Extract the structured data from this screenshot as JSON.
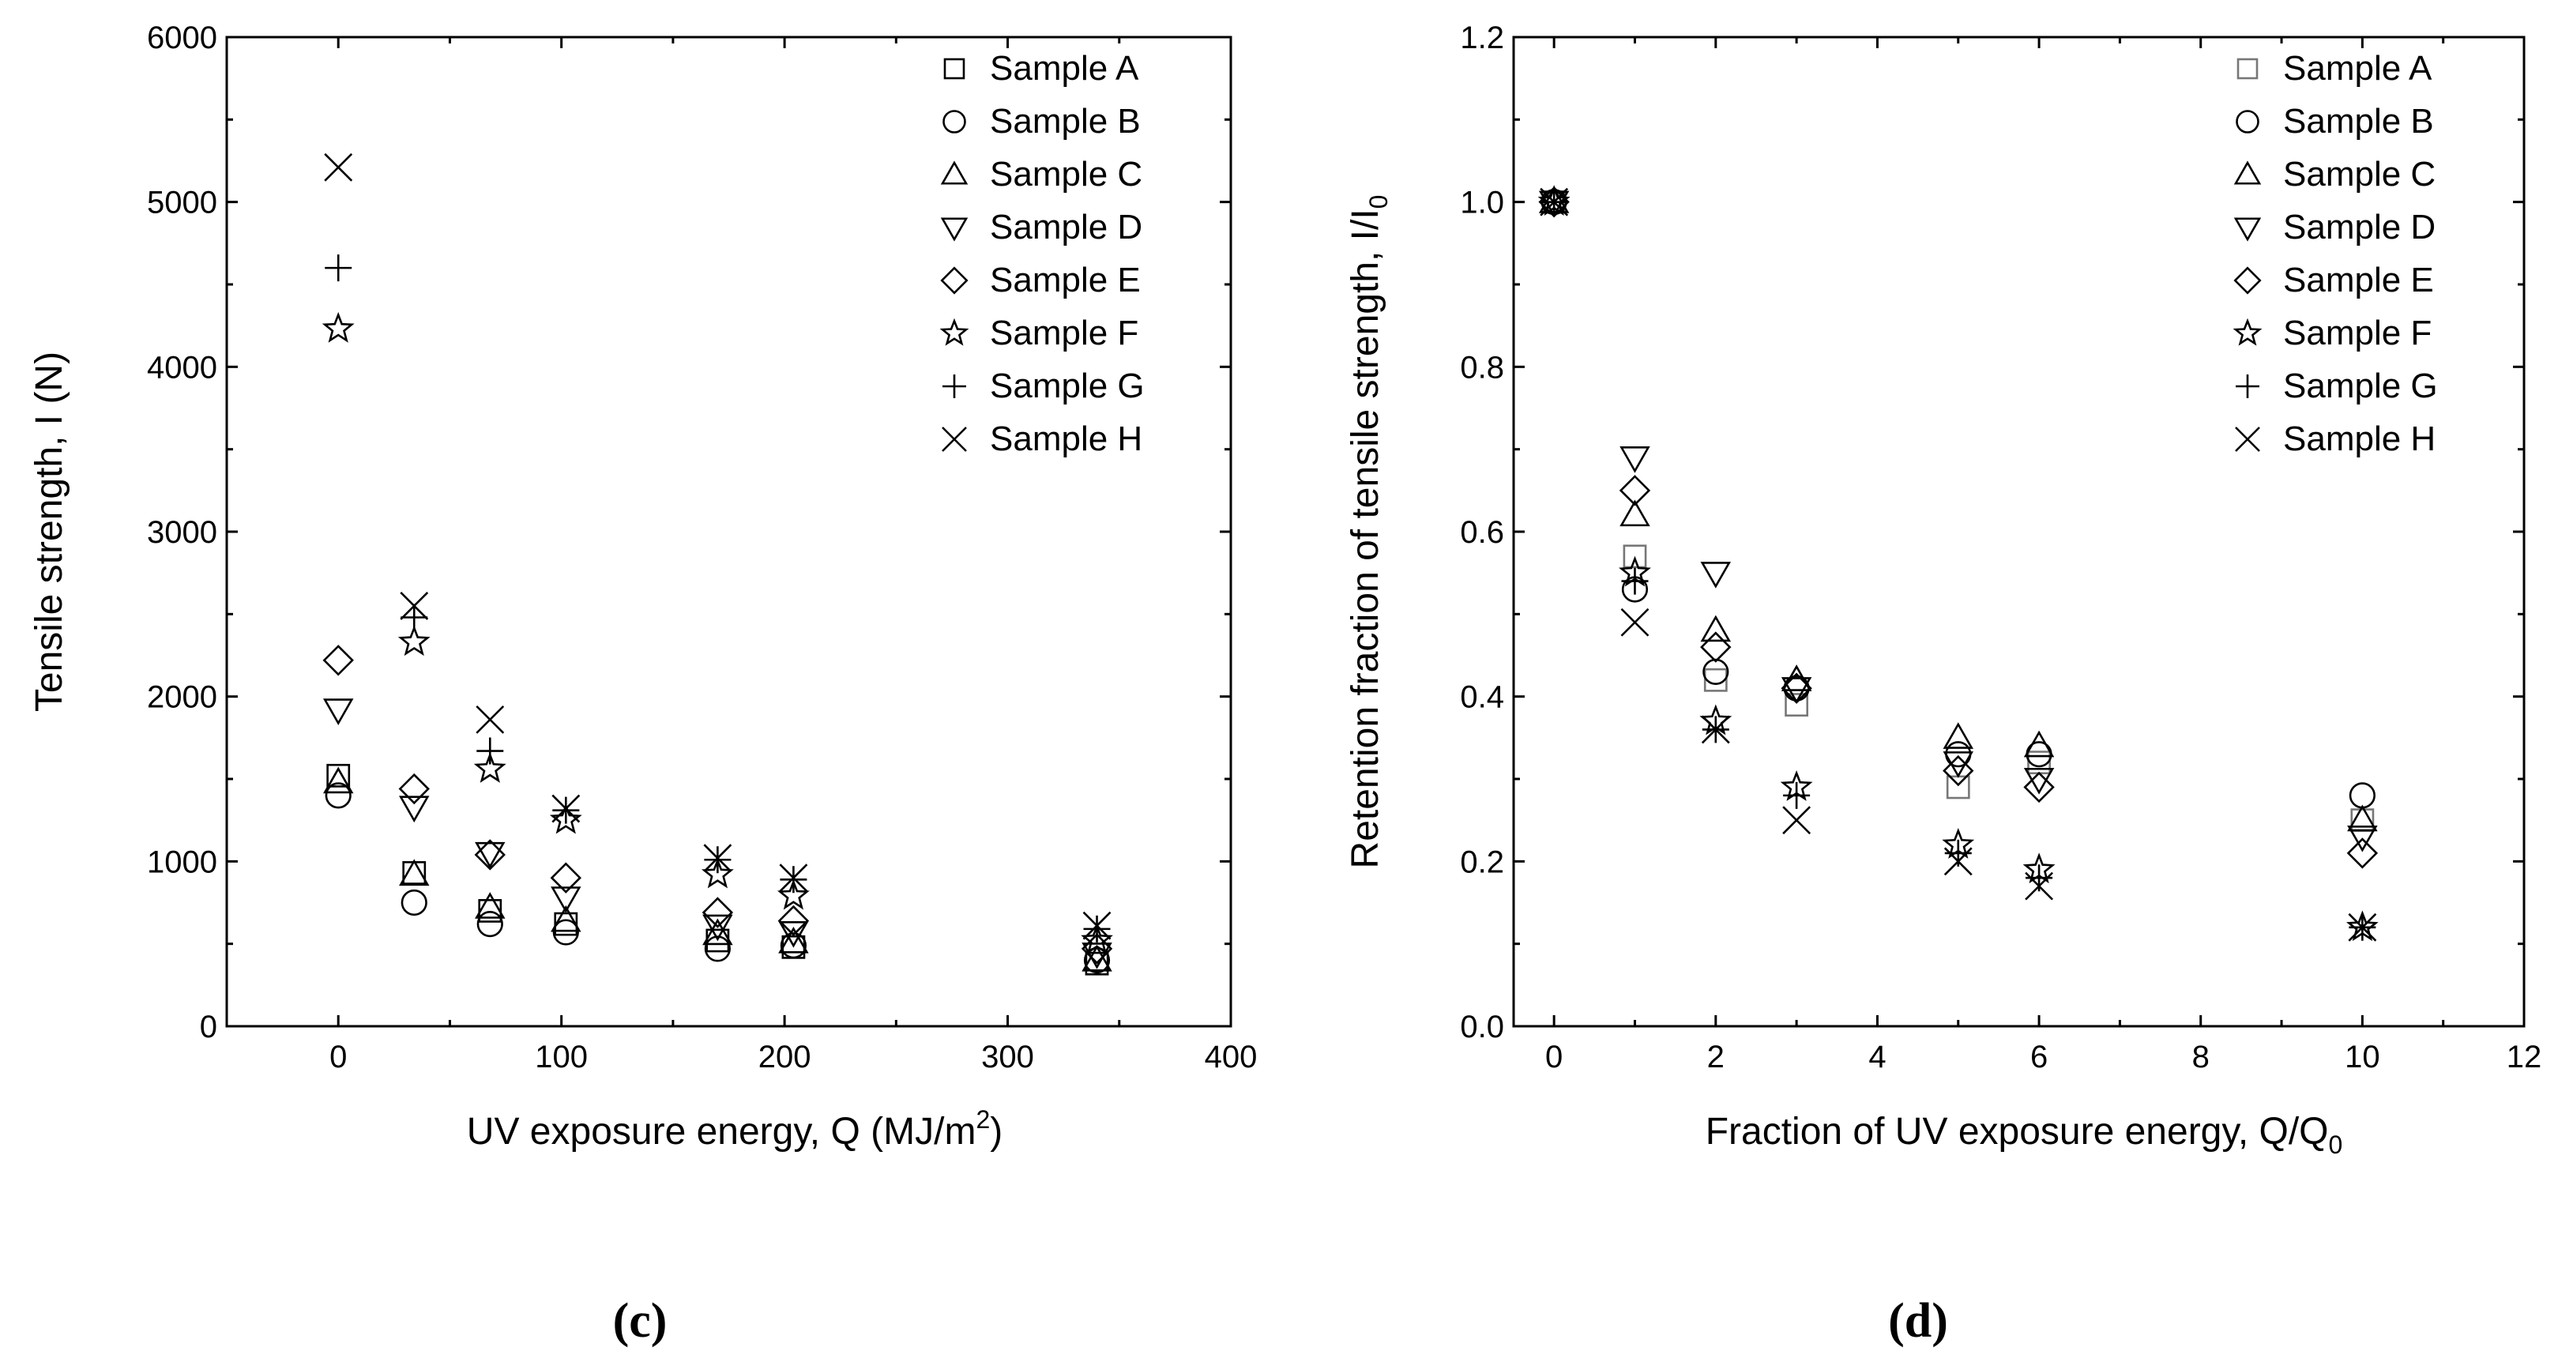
{
  "chart_data": [
    {
      "type": "scatter",
      "panel_label": "(c)",
      "xlabel": "UV exposure energy, Q (MJ/m",
      "xlabel_sup": "2",
      "xlabel_tail": ")",
      "ylabel": "Tensile strength, I (N)",
      "xlim": [
        -50,
        400
      ],
      "ylim": [
        0,
        6000
      ],
      "xticks": [
        0,
        100,
        200,
        300,
        400
      ],
      "yticks": [
        0,
        1000,
        2000,
        3000,
        4000,
        5000,
        6000
      ],
      "legend_position": "top-right",
      "series": [
        {
          "name": "Sample A",
          "marker": "square",
          "x": [
            0,
            34,
            68,
            102,
            170,
            204,
            340
          ],
          "y": [
            1520,
            930,
            700,
            620,
            520,
            480,
            380
          ]
        },
        {
          "name": "Sample B",
          "marker": "circle",
          "x": [
            0,
            34,
            68,
            102,
            170,
            204,
            340
          ],
          "y": [
            1400,
            750,
            620,
            570,
            470,
            490,
            400
          ]
        },
        {
          "name": "Sample C",
          "marker": "triangle-up",
          "x": [
            0,
            34,
            68,
            102,
            170,
            204,
            340
          ],
          "y": [
            1480,
            920,
            720,
            640,
            560,
            510,
            400
          ]
        },
        {
          "name": "Sample D",
          "marker": "triangle-down",
          "x": [
            0,
            34,
            68,
            102,
            170,
            204,
            340
          ],
          "y": [
            1920,
            1330,
            1050,
            780,
            610,
            570,
            440
          ]
        },
        {
          "name": "Sample E",
          "marker": "diamond",
          "x": [
            0,
            34,
            68,
            102,
            170,
            204,
            340
          ],
          "y": [
            2220,
            1440,
            1040,
            900,
            690,
            640,
            470
          ]
        },
        {
          "name": "Sample F",
          "marker": "star",
          "x": [
            0,
            34,
            68,
            102,
            170,
            204,
            340
          ],
          "y": [
            4230,
            2330,
            1560,
            1250,
            920,
            790,
            520
          ]
        },
        {
          "name": "Sample G",
          "marker": "plus",
          "x": [
            0,
            34,
            68,
            102,
            170,
            204,
            340
          ],
          "y": [
            4600,
            2480,
            1670,
            1310,
            1010,
            890,
            590
          ]
        },
        {
          "name": "Sample H",
          "marker": "x",
          "x": [
            0,
            34,
            68,
            102,
            170,
            204,
            340
          ],
          "y": [
            5210,
            2550,
            1860,
            1320,
            1020,
            900,
            610
          ]
        }
      ]
    },
    {
      "type": "scatter",
      "panel_label": "(d)",
      "xlabel": "Fraction of UV exposure energy, Q/Q",
      "xlabel_sub": "0",
      "ylabel": "Retention fraction of tensile strength, I/I",
      "ylabel_sub": "0",
      "xlim": [
        -0.5,
        12
      ],
      "ylim": [
        0.0,
        1.2
      ],
      "xticks": [
        0,
        2,
        4,
        6,
        8,
        10,
        12
      ],
      "yticks": [
        0.0,
        0.2,
        0.4,
        0.6,
        0.8,
        1.0,
        1.2
      ],
      "ytick_labels": [
        "0.0",
        "0.2",
        "0.4",
        "0.6",
        "0.8",
        "1.0",
        "1.2"
      ],
      "legend_position": "top-right",
      "series": [
        {
          "name": "Sample A",
          "marker": "square",
          "gray": true,
          "x": [
            0,
            1,
            2,
            3,
            5,
            6,
            10
          ],
          "y": [
            1.0,
            0.57,
            0.42,
            0.39,
            0.29,
            0.32,
            0.25
          ]
        },
        {
          "name": "Sample B",
          "marker": "circle",
          "x": [
            0,
            1,
            2,
            3,
            5,
            6,
            10
          ],
          "y": [
            1.0,
            0.53,
            0.43,
            0.41,
            0.33,
            0.33,
            0.28
          ]
        },
        {
          "name": "Sample C",
          "marker": "triangle-up",
          "x": [
            0,
            1,
            2,
            3,
            5,
            6,
            10
          ],
          "y": [
            1.0,
            0.62,
            0.48,
            0.42,
            0.35,
            0.34,
            0.25
          ]
        },
        {
          "name": "Sample D",
          "marker": "triangle-down",
          "x": [
            0,
            1,
            2,
            3,
            5,
            6,
            10
          ],
          "y": [
            1.0,
            0.69,
            0.55,
            0.41,
            0.32,
            0.3,
            0.23
          ]
        },
        {
          "name": "Sample E",
          "marker": "diamond",
          "x": [
            0,
            1,
            2,
            3,
            5,
            6,
            10
          ],
          "y": [
            1.0,
            0.65,
            0.46,
            0.41,
            0.31,
            0.29,
            0.21
          ]
        },
        {
          "name": "Sample F",
          "marker": "star",
          "x": [
            0,
            1,
            2,
            3,
            5,
            6,
            10
          ],
          "y": [
            1.0,
            0.55,
            0.37,
            0.29,
            0.22,
            0.19,
            0.12
          ]
        },
        {
          "name": "Sample G",
          "marker": "plus",
          "x": [
            0,
            1,
            2,
            3,
            5,
            6,
            10
          ],
          "y": [
            1.0,
            0.54,
            0.36,
            0.28,
            0.21,
            0.18,
            0.12
          ]
        },
        {
          "name": "Sample H",
          "marker": "x",
          "x": [
            0,
            1,
            2,
            3,
            5,
            6,
            10
          ],
          "y": [
            1.0,
            0.49,
            0.36,
            0.25,
            0.2,
            0.17,
            0.12
          ]
        }
      ]
    }
  ]
}
